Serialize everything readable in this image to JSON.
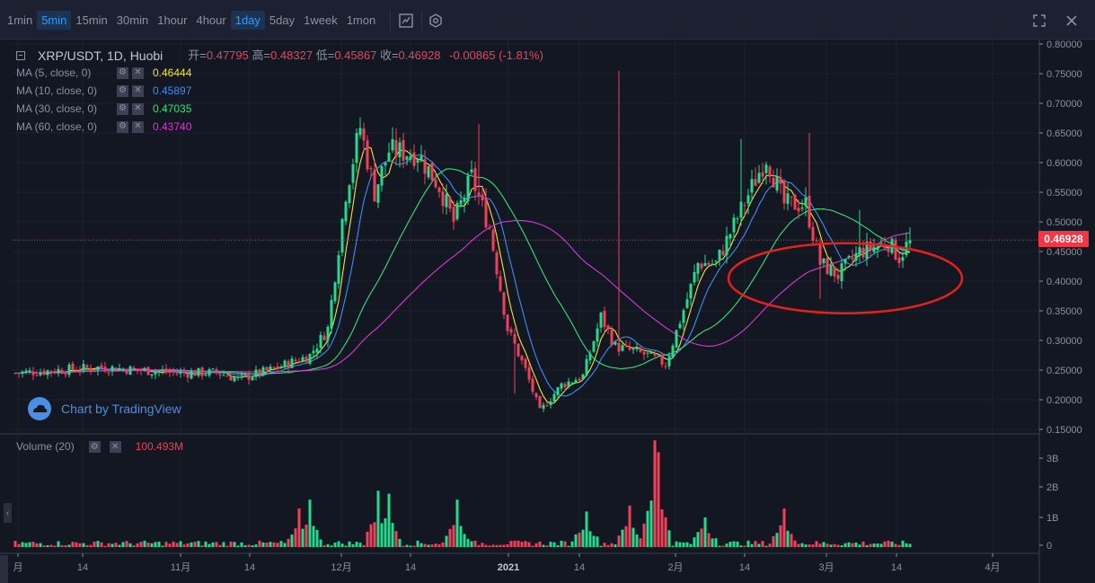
{
  "toolbar": {
    "intervals": [
      {
        "label": "1min",
        "active": false
      },
      {
        "label": "5min",
        "active": true
      },
      {
        "label": "15min",
        "active": false
      },
      {
        "label": "30min",
        "active": false
      },
      {
        "label": "1hour",
        "active": false
      },
      {
        "label": "4hour",
        "active": false
      },
      {
        "label": "1day",
        "active": true
      },
      {
        "label": "5day",
        "active": false
      },
      {
        "label": "1week",
        "active": false
      },
      {
        "label": "1mon",
        "active": false
      }
    ],
    "indicator_icon": "line-chart-icon",
    "settings_icon": "hexagon-gear-icon",
    "fullscreen_icon": "fullscreen-icon",
    "close_icon": "close-icon"
  },
  "legend": {
    "symbol": "XRP/USDT, 1D, Huobi",
    "open_label": "开=",
    "open": "0.47795",
    "high_label": "高=",
    "high": "0.48327",
    "low_label": "低=",
    "low": "0.45867",
    "close_label": "收=",
    "close": "0.46928",
    "change": "-0.00865 (-1.81%)",
    "ma": [
      {
        "label": "MA (5, close, 0)",
        "value": "0.46444",
        "color": "#f5e33a"
      },
      {
        "label": "MA (10, close, 0)",
        "value": "0.45897",
        "color": "#3d8ef3"
      },
      {
        "label": "MA (30, close, 0)",
        "value": "0.47035",
        "color": "#2ee37a"
      },
      {
        "label": "MA (60, close, 0)",
        "value": "0.43740",
        "color": "#d63ad6"
      }
    ]
  },
  "watermark": "Chart by TradingView",
  "volume": {
    "label": "Volume (20)",
    "value": "100.493M"
  },
  "price_badge": "0.46928",
  "colors": {
    "up": "#26d98c",
    "down": "#f0405a",
    "background": "#131722",
    "annotation": "#e8201c"
  },
  "chart_data": {
    "type": "candlestick",
    "x_ticks": [
      "月",
      "14",
      "11月",
      "14",
      "12月",
      "14",
      "2021",
      "14",
      "2月",
      "14",
      "3月",
      "14",
      "4月"
    ],
    "y_ticks": [
      "0.80000",
      "0.75000",
      "0.70000",
      "0.65000",
      "0.60000",
      "0.55000",
      "0.50000",
      "0.45000",
      "0.40000",
      "0.35000",
      "0.30000",
      "0.25000",
      "0.20000",
      "0.15000"
    ],
    "volume_ticks": [
      "3B",
      "2B",
      "1B",
      "0"
    ],
    "ylim": [
      0.145,
      0.81
    ],
    "last_price": 0.46928,
    "segments": [
      [
        0,
        0.245
      ],
      [
        24,
        0.255
      ],
      [
        46,
        0.245
      ],
      [
        56,
        0.246
      ],
      [
        62,
        0.235
      ],
      [
        72,
        0.252
      ],
      [
        82,
        0.275
      ],
      [
        87,
        0.32
      ],
      [
        92,
        0.55
      ],
      [
        96,
        0.66
      ],
      [
        100,
        0.55
      ],
      [
        104,
        0.62
      ],
      [
        112,
        0.615
      ],
      [
        118,
        0.56
      ],
      [
        122,
        0.5
      ],
      [
        127,
        0.575
      ],
      [
        132,
        0.49
      ],
      [
        137,
        0.32
      ],
      [
        142,
        0.25
      ],
      [
        146,
        0.18
      ],
      [
        152,
        0.225
      ],
      [
        158,
        0.24
      ],
      [
        163,
        0.34
      ],
      [
        167,
        0.29
      ],
      [
        176,
        0.275
      ],
      [
        181,
        0.26
      ],
      [
        187,
        0.37
      ],
      [
        190,
        0.43
      ],
      [
        195,
        0.43
      ],
      [
        202,
        0.52
      ],
      [
        209,
        0.61
      ],
      [
        214,
        0.53
      ],
      [
        220,
        0.53
      ],
      [
        224,
        0.43
      ],
      [
        229,
        0.41
      ],
      [
        235,
        0.45
      ],
      [
        243,
        0.465
      ],
      [
        246,
        0.44
      ],
      [
        249,
        0.47
      ]
    ],
    "spikes": [
      [
        168,
        0.755
      ],
      [
        129,
        0.665
      ],
      [
        139,
        0.21
      ],
      [
        202,
        0.64
      ],
      [
        221,
        0.65
      ],
      [
        224,
        0.37
      ],
      [
        235,
        0.52
      ]
    ],
    "volume_peaks": [
      [
        79,
        1.3
      ],
      [
        82,
        1.6
      ],
      [
        101,
        1.9
      ],
      [
        104,
        1.8
      ],
      [
        123,
        1.6
      ],
      [
        159,
        1.2
      ],
      [
        171,
        1.4
      ],
      [
        178,
        3.6
      ],
      [
        179,
        3.2
      ],
      [
        192,
        1.0
      ],
      [
        214,
        1.3
      ]
    ],
    "annotation": {
      "type": "ellipse",
      "x_range": [
        206,
        246
      ],
      "price_range": [
        0.355,
        0.455
      ],
      "color": "#e8201c"
    }
  }
}
